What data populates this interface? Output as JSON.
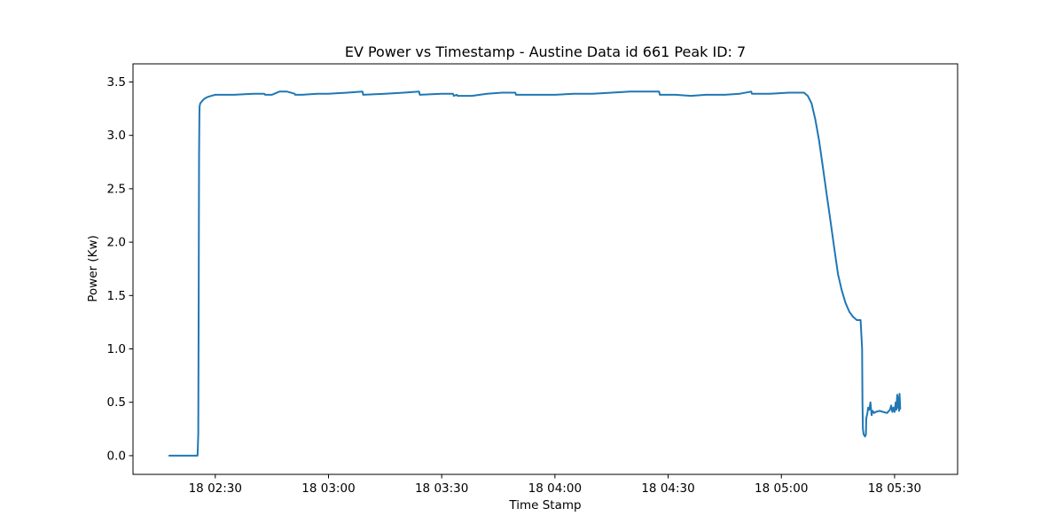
{
  "chart_data": {
    "type": "line",
    "title": "EV Power vs Timestamp - Austine Data id 661 Peak ID: 7",
    "xlabel": "Time Stamp",
    "ylabel": "Power (Kw)",
    "x_tick_labels": [
      "18 02:30",
      "18 03:00",
      "18 03:30",
      "18 04:00",
      "18 04:30",
      "18 05:00",
      "18 05:30"
    ],
    "x_tick_values_min": [
      150,
      180,
      210,
      240,
      270,
      300,
      330
    ],
    "xlim_min": [
      128.2,
      346.7
    ],
    "y_ticks": [
      0.0,
      0.5,
      1.0,
      1.5,
      2.0,
      2.5,
      3.0,
      3.5
    ],
    "y_tick_labels": [
      "0.0",
      "0.5",
      "1.0",
      "1.5",
      "2.0",
      "2.5",
      "3.0",
      "3.5"
    ],
    "ylim": [
      -0.175,
      3.67
    ],
    "grid": false,
    "color": "#1f77b4",
    "series": [
      {
        "x_min": [
          137.8,
          139.5,
          141.0,
          143.0,
          145.3,
          145.5,
          145.6,
          145.7,
          145.8,
          145.85,
          146.0,
          146.5,
          147.0,
          147.5,
          148.0,
          149.0,
          150.0,
          155.0,
          160.0,
          163.0,
          163.2,
          165.0,
          167.0,
          169.0,
          171.0,
          171.2,
          173.0,
          177.0,
          180.0,
          185.0,
          189.0,
          189.2,
          195.0,
          200.0,
          204.0,
          204.2,
          210.0,
          213.0,
          213.2,
          214.0,
          214.2,
          218.0,
          222.0,
          226.0,
          229.5,
          229.7,
          235.0,
          240.0,
          245.0,
          250.0,
          255.0,
          260.0,
          266.0,
          267.6,
          267.8,
          272.0,
          276.0,
          280.0,
          285.0,
          289.0,
          292.0,
          292.2,
          297.0,
          302.0,
          306.0,
          307.0,
          308.0,
          309.0,
          310.0,
          311.0,
          312.0,
          313.0,
          314.0,
          315.0,
          316.0,
          317.0,
          318.0,
          319.0,
          320.0,
          321.0,
          321.4,
          321.5,
          321.6,
          321.8,
          322.2,
          322.4,
          322.5,
          322.8,
          323.0,
          323.3,
          323.6,
          323.9,
          324.2,
          324.6,
          325.0,
          326.0,
          327.0,
          328.0,
          328.8,
          329.1,
          329.4,
          329.7,
          330.0,
          330.3,
          330.5,
          330.7,
          330.9,
          331.0,
          331.2,
          331.3,
          331.5
        ],
        "values": [
          0.0,
          0.0,
          0.0,
          0.0,
          0.0,
          0.2,
          1.5,
          2.8,
          3.2,
          3.27,
          3.3,
          3.32,
          3.34,
          3.35,
          3.36,
          3.37,
          3.38,
          3.38,
          3.39,
          3.39,
          3.38,
          3.38,
          3.41,
          3.41,
          3.39,
          3.38,
          3.38,
          3.39,
          3.39,
          3.4,
          3.41,
          3.38,
          3.39,
          3.4,
          3.41,
          3.38,
          3.39,
          3.39,
          3.37,
          3.38,
          3.37,
          3.37,
          3.39,
          3.4,
          3.4,
          3.38,
          3.38,
          3.38,
          3.39,
          3.39,
          3.4,
          3.41,
          3.41,
          3.41,
          3.38,
          3.38,
          3.37,
          3.38,
          3.38,
          3.39,
          3.41,
          3.39,
          3.39,
          3.4,
          3.4,
          3.37,
          3.3,
          3.15,
          2.95,
          2.7,
          2.45,
          2.2,
          1.95,
          1.7,
          1.55,
          1.43,
          1.35,
          1.3,
          1.27,
          1.27,
          1.0,
          0.5,
          0.25,
          0.2,
          0.18,
          0.2,
          0.35,
          0.4,
          0.45,
          0.43,
          0.5,
          0.38,
          0.42,
          0.4,
          0.41,
          0.42,
          0.41,
          0.4,
          0.43,
          0.47,
          0.41,
          0.45,
          0.41,
          0.5,
          0.43,
          0.57,
          0.45,
          0.55,
          0.42,
          0.58,
          0.44
        ]
      }
    ]
  }
}
